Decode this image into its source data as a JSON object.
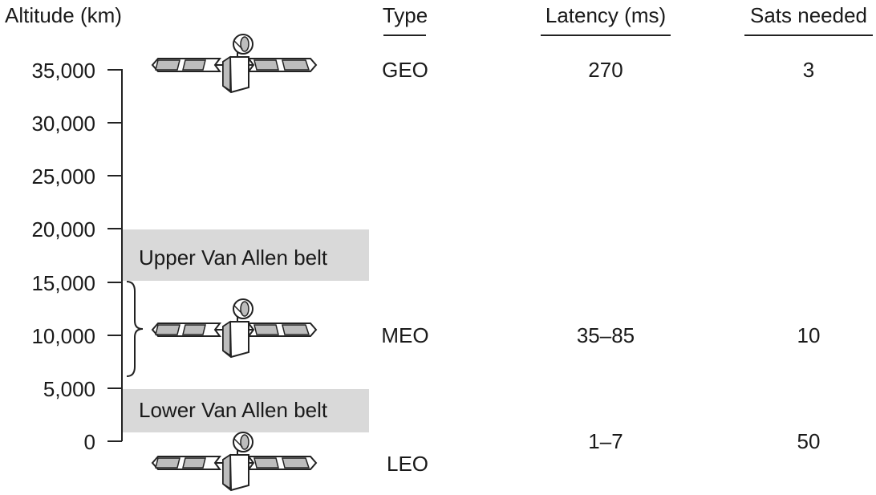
{
  "headers": {
    "altitude": "Altitude (km)",
    "type": "Type",
    "latency": "Latency (ms)",
    "sats": "Sats needed"
  },
  "axis_ticks": [
    "35,000",
    "30,000",
    "25,000",
    "20,000",
    "15,000",
    "10,000",
    "5,000",
    "0"
  ],
  "belts": {
    "upper": "Upper Van Allen belt",
    "lower": "Lower Van Allen belt"
  },
  "orbits": [
    {
      "type": "GEO",
      "latency": "270",
      "sats": "3"
    },
    {
      "type": "MEO",
      "latency": "35–85",
      "sats": "10"
    },
    {
      "type": "LEO",
      "latency": "1–7",
      "sats": "50"
    }
  ],
  "colors": {
    "belt": "#d9d9d9",
    "panel": "#bdbdbd",
    "line": "#222222"
  }
}
